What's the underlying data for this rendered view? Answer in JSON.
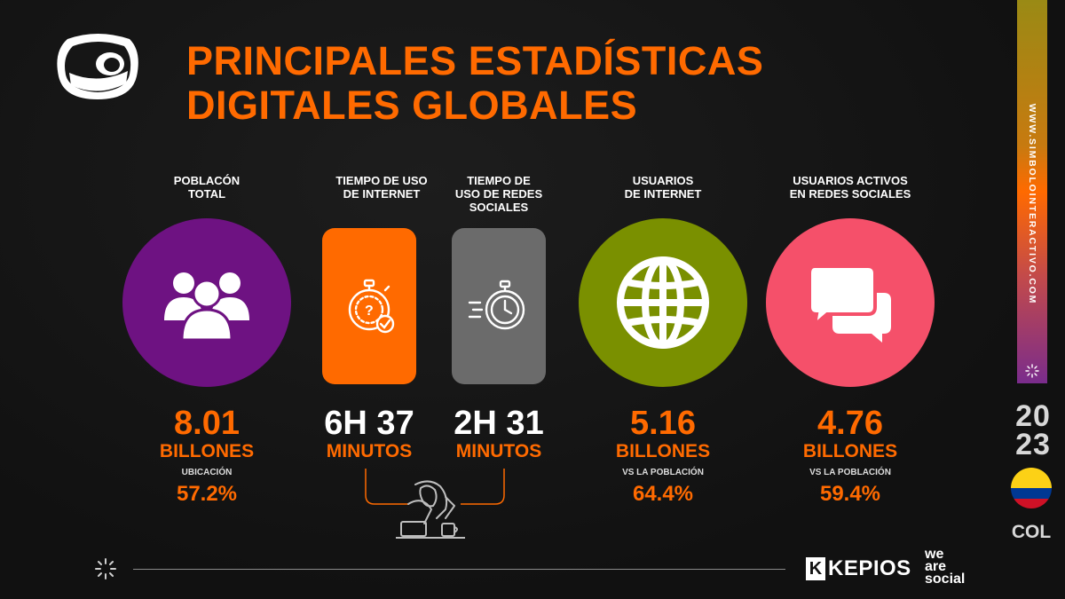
{
  "header": {
    "title_line1": "PRINCIPALES ESTADÍSTICAS",
    "title_line2": "DIGITALES GLOBALES"
  },
  "stats": [
    {
      "label_lines": [
        "POBLACÓN",
        "TOTAL"
      ],
      "value": "8.01",
      "unit": "BILLONES",
      "note": "UBICACIÓN",
      "percent": "57.2%",
      "icon": "people-group-icon",
      "color": "#6e1282"
    },
    {
      "label_lines": [
        "TIEMPO DE USO",
        "DE INTERNET"
      ],
      "value": "6H 37",
      "unit": "MINUTOS",
      "icon": "stopwatch-check-icon",
      "color": "#ff6a00"
    },
    {
      "label_lines": [
        "TIEMPO DE",
        "USO DE REDES",
        "SOCIALES"
      ],
      "value": "2H 31",
      "unit": "MINUTOS",
      "icon": "fast-stopwatch-icon",
      "color": "#6b6b6b"
    },
    {
      "label_lines": [
        "USUARIOS",
        "DE INTERNET"
      ],
      "value": "5.16",
      "unit": "BILLONES",
      "note": "VS LA POBLACIÓN",
      "percent": "64.4%",
      "icon": "globe-icon",
      "color": "#7a9000"
    },
    {
      "label_lines": [
        "USUARIOS ACTIVOS",
        "EN REDES SOCIALES"
      ],
      "value": "4.76",
      "unit": "BILLONES",
      "note": "VS LA POBLACIÓN",
      "percent": "59.4%",
      "icon": "chat-bubbles-icon",
      "color": "#f5506a"
    }
  ],
  "sidebar": {
    "url": "WWW.SIMBOLOINTERACTIVO.COM",
    "year_top": "20",
    "year_bottom": "23",
    "country": "COL"
  },
  "footer": {
    "kepios_mark": "K",
    "kepios_name": "KEPIOS",
    "was_line1": "we",
    "was_line2": "are",
    "was_line3": "social"
  }
}
